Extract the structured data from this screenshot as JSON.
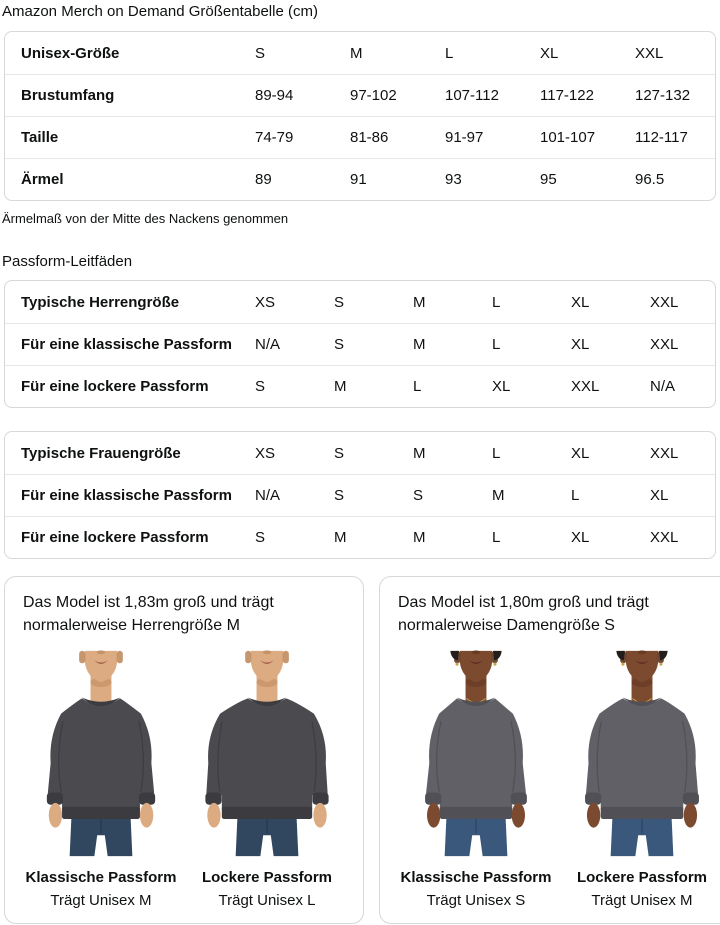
{
  "page": {
    "title": "Amazon Merch on Demand Größentabelle (cm)",
    "note": "Ärmelmaß von der Mitte des Nackens genommen",
    "fit_guides_title": "Passform-Leitfäden"
  },
  "colors": {
    "text": "#0f1111",
    "table_border": "#d5d9d9",
    "row_divider": "#e7e7e7",
    "background": "#ffffff"
  },
  "size_table": {
    "header_label": "Unisex-Größe",
    "columns": [
      "S",
      "M",
      "L",
      "XL",
      "XXL"
    ],
    "rows": [
      {
        "label": "Brustumfang",
        "values": [
          "89-94",
          "97-102",
          "107-112",
          "117-122",
          "127-132"
        ]
      },
      {
        "label": "Taille",
        "values": [
          "74-79",
          "81-86",
          "91-97",
          "101-107",
          "112-117"
        ]
      },
      {
        "label": "Ärmel",
        "values": [
          "89",
          "91",
          "93",
          "95",
          "96.5"
        ]
      }
    ]
  },
  "men_fit_table": {
    "rows": [
      {
        "label": "Typische Herrengröße",
        "values": [
          "XS",
          "S",
          "M",
          "L",
          "XL",
          "XXL"
        ]
      },
      {
        "label": "Für eine klassische Passform",
        "values": [
          "N/A",
          "S",
          "M",
          "L",
          "XL",
          "XXL"
        ]
      },
      {
        "label": "Für eine lockere Passform",
        "values": [
          "S",
          "M",
          "L",
          "XL",
          "XXL",
          "N/A"
        ]
      }
    ]
  },
  "women_fit_table": {
    "rows": [
      {
        "label": "Typische Frauengröße",
        "values": [
          "XS",
          "S",
          "M",
          "L",
          "XL",
          "XXL"
        ]
      },
      {
        "label": "Für eine klassische Passform",
        "values": [
          "N/A",
          "S",
          "S",
          "M",
          "L",
          "XL"
        ]
      },
      {
        "label": "Für eine lockere Passform",
        "values": [
          "S",
          "M",
          "M",
          "L",
          "XL",
          "XXL"
        ]
      }
    ]
  },
  "model_cards": [
    {
      "description": "Das Model ist 1,83m groß und trägt normalerweise Herrengröße M",
      "figures": [
        {
          "fit_label": "Klassische Passform",
          "size_label": "Trägt Unisex M",
          "art": {
            "f": 1.0,
            "female": false,
            "skin": "#dcab82",
            "skin_shadow": "#c08b5e",
            "lip": "#a5604a",
            "shirt": "#4a4a4f",
            "shirt_dark": "#3b3b40",
            "jeans": "#31475f",
            "jeans_dark": "#263a50",
            "hair": "#241e1b",
            "gold": "#c9a24a"
          }
        },
        {
          "fit_label": "Lockere Passform",
          "size_label": "Trägt Unisex L",
          "art": {
            "f": 1.16,
            "female": false,
            "skin": "#dcab82",
            "skin_shadow": "#c08b5e",
            "lip": "#a5604a",
            "shirt": "#4a4a4f",
            "shirt_dark": "#3b3b40",
            "jeans": "#31475f",
            "jeans_dark": "#263a50",
            "hair": "#241e1b",
            "gold": "#c9a24a"
          }
        }
      ]
    },
    {
      "description": "Das Model ist 1,80m groß und trägt normalerweise Damengröße S",
      "figures": [
        {
          "fit_label": "Klassische Passform",
          "size_label": "Trägt Unisex S",
          "art": {
            "f": 0.93,
            "female": true,
            "skin": "#7c4a2f",
            "skin_shadow": "#613722",
            "lip": "#5c2f22",
            "shirt": "#606066",
            "shirt_dark": "#505056",
            "jeans": "#3a587c",
            "jeans_dark": "#2e4764",
            "hair": "#241e1b",
            "gold": "#c9a24a"
          }
        },
        {
          "fit_label": "Lockere Passform",
          "size_label": "Trägt Unisex M",
          "art": {
            "f": 1.06,
            "female": true,
            "skin": "#7c4a2f",
            "skin_shadow": "#613722",
            "lip": "#5c2f22",
            "shirt": "#606066",
            "shirt_dark": "#505056",
            "jeans": "#3a587c",
            "jeans_dark": "#2e4764",
            "hair": "#241e1b",
            "gold": "#c9a24a"
          }
        }
      ]
    }
  ]
}
